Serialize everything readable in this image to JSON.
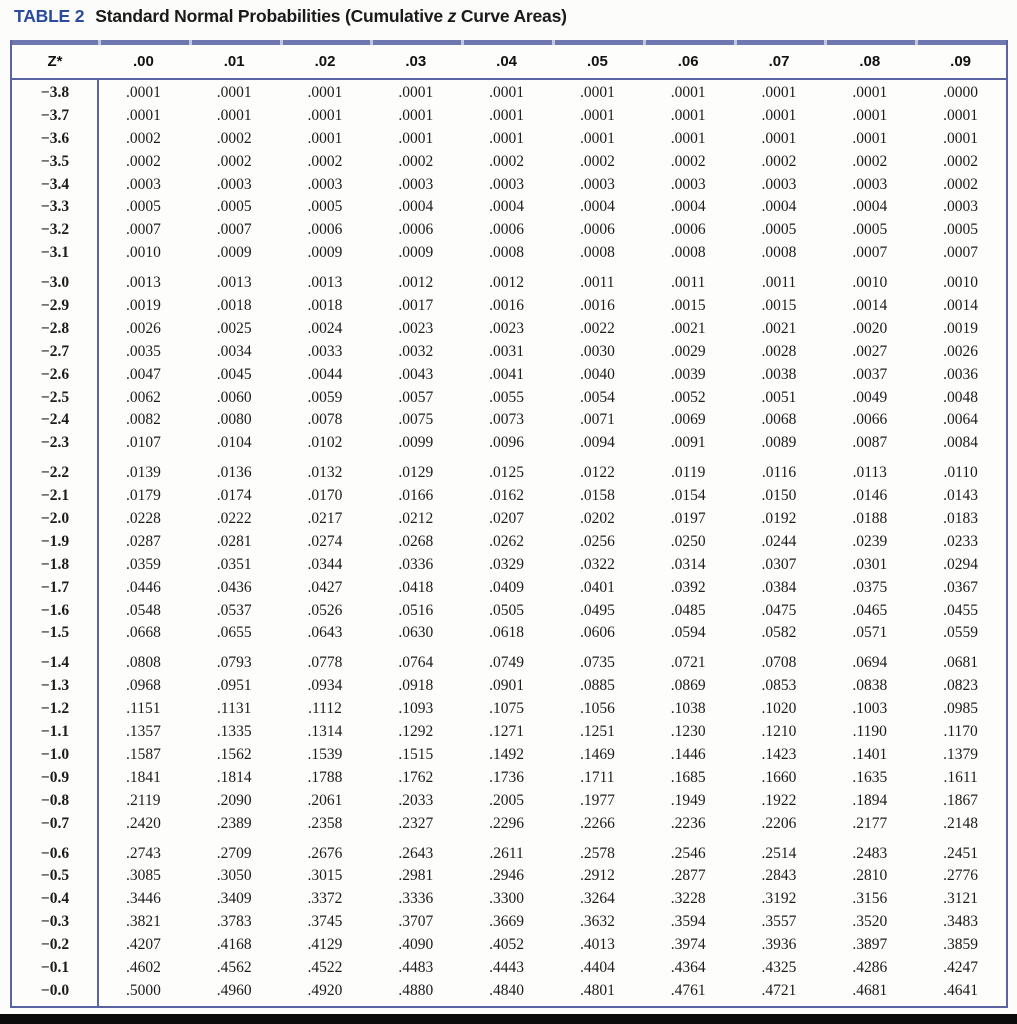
{
  "title": {
    "tag": "TABLE 2",
    "segments": [
      {
        "text": "Standard Normal Probabilities (Cumulative "
      },
      {
        "text": "z",
        "italic": true
      },
      {
        "text": " Curve Areas)"
      }
    ]
  },
  "colors": {
    "title_tag_blue": "#2b4c9e",
    "table_border_blue": "#5a64a3",
    "top_band_blue": "#6f77b0",
    "top_band_notch": "#c3c7dd",
    "text": "#1c1c1c",
    "bottom_edge_band": "#0b0b0b"
  },
  "table": {
    "columns": [
      "Z*",
      ".00",
      ".01",
      ".02",
      ".03",
      ".04",
      ".05",
      ".06",
      ".07",
      ".08",
      ".09"
    ],
    "row_groups": [
      {
        "rows": [
          [
            "−3.8",
            ".0001",
            ".0001",
            ".0001",
            ".0001",
            ".0001",
            ".0001",
            ".0001",
            ".0001",
            ".0001",
            ".0000"
          ],
          [
            "−3.7",
            ".0001",
            ".0001",
            ".0001",
            ".0001",
            ".0001",
            ".0001",
            ".0001",
            ".0001",
            ".0001",
            ".0001"
          ],
          [
            "−3.6",
            ".0002",
            ".0002",
            ".0001",
            ".0001",
            ".0001",
            ".0001",
            ".0001",
            ".0001",
            ".0001",
            ".0001"
          ],
          [
            "−3.5",
            ".0002",
            ".0002",
            ".0002",
            ".0002",
            ".0002",
            ".0002",
            ".0002",
            ".0002",
            ".0002",
            ".0002"
          ],
          [
            "−3.4",
            ".0003",
            ".0003",
            ".0003",
            ".0003",
            ".0003",
            ".0003",
            ".0003",
            ".0003",
            ".0003",
            ".0002"
          ],
          [
            "−3.3",
            ".0005",
            ".0005",
            ".0005",
            ".0004",
            ".0004",
            ".0004",
            ".0004",
            ".0004",
            ".0004",
            ".0003"
          ],
          [
            "−3.2",
            ".0007",
            ".0007",
            ".0006",
            ".0006",
            ".0006",
            ".0006",
            ".0006",
            ".0005",
            ".0005",
            ".0005"
          ],
          [
            "−3.1",
            ".0010",
            ".0009",
            ".0009",
            ".0009",
            ".0008",
            ".0008",
            ".0008",
            ".0008",
            ".0007",
            ".0007"
          ]
        ]
      },
      {
        "rows": [
          [
            "−3.0",
            ".0013",
            ".0013",
            ".0013",
            ".0012",
            ".0012",
            ".0011",
            ".0011",
            ".0011",
            ".0010",
            ".0010"
          ],
          [
            "−2.9",
            ".0019",
            ".0018",
            ".0018",
            ".0017",
            ".0016",
            ".0016",
            ".0015",
            ".0015",
            ".0014",
            ".0014"
          ],
          [
            "−2.8",
            ".0026",
            ".0025",
            ".0024",
            ".0023",
            ".0023",
            ".0022",
            ".0021",
            ".0021",
            ".0020",
            ".0019"
          ],
          [
            "−2.7",
            ".0035",
            ".0034",
            ".0033",
            ".0032",
            ".0031",
            ".0030",
            ".0029",
            ".0028",
            ".0027",
            ".0026"
          ],
          [
            "−2.6",
            ".0047",
            ".0045",
            ".0044",
            ".0043",
            ".0041",
            ".0040",
            ".0039",
            ".0038",
            ".0037",
            ".0036"
          ],
          [
            "−2.5",
            ".0062",
            ".0060",
            ".0059",
            ".0057",
            ".0055",
            ".0054",
            ".0052",
            ".0051",
            ".0049",
            ".0048"
          ],
          [
            "−2.4",
            ".0082",
            ".0080",
            ".0078",
            ".0075",
            ".0073",
            ".0071",
            ".0069",
            ".0068",
            ".0066",
            ".0064"
          ],
          [
            "−2.3",
            ".0107",
            ".0104",
            ".0102",
            ".0099",
            ".0096",
            ".0094",
            ".0091",
            ".0089",
            ".0087",
            ".0084"
          ]
        ]
      },
      {
        "rows": [
          [
            "−2.2",
            ".0139",
            ".0136",
            ".0132",
            ".0129",
            ".0125",
            ".0122",
            ".0119",
            ".0116",
            ".0113",
            ".0110"
          ],
          [
            "−2.1",
            ".0179",
            ".0174",
            ".0170",
            ".0166",
            ".0162",
            ".0158",
            ".0154",
            ".0150",
            ".0146",
            ".0143"
          ],
          [
            "−2.0",
            ".0228",
            ".0222",
            ".0217",
            ".0212",
            ".0207",
            ".0202",
            ".0197",
            ".0192",
            ".0188",
            ".0183"
          ],
          [
            "−1.9",
            ".0287",
            ".0281",
            ".0274",
            ".0268",
            ".0262",
            ".0256",
            ".0250",
            ".0244",
            ".0239",
            ".0233"
          ],
          [
            "−1.8",
            ".0359",
            ".0351",
            ".0344",
            ".0336",
            ".0329",
            ".0322",
            ".0314",
            ".0307",
            ".0301",
            ".0294"
          ],
          [
            "−1.7",
            ".0446",
            ".0436",
            ".0427",
            ".0418",
            ".0409",
            ".0401",
            ".0392",
            ".0384",
            ".0375",
            ".0367"
          ],
          [
            "−1.6",
            ".0548",
            ".0537",
            ".0526",
            ".0516",
            ".0505",
            ".0495",
            ".0485",
            ".0475",
            ".0465",
            ".0455"
          ],
          [
            "−1.5",
            ".0668",
            ".0655",
            ".0643",
            ".0630",
            ".0618",
            ".0606",
            ".0594",
            ".0582",
            ".0571",
            ".0559"
          ]
        ]
      },
      {
        "rows": [
          [
            "−1.4",
            ".0808",
            ".0793",
            ".0778",
            ".0764",
            ".0749",
            ".0735",
            ".0721",
            ".0708",
            ".0694",
            ".0681"
          ],
          [
            "−1.3",
            ".0968",
            ".0951",
            ".0934",
            ".0918",
            ".0901",
            ".0885",
            ".0869",
            ".0853",
            ".0838",
            ".0823"
          ],
          [
            "−1.2",
            ".1151",
            ".1131",
            ".1112",
            ".1093",
            ".1075",
            ".1056",
            ".1038",
            ".1020",
            ".1003",
            ".0985"
          ],
          [
            "−1.1",
            ".1357",
            ".1335",
            ".1314",
            ".1292",
            ".1271",
            ".1251",
            ".1230",
            ".1210",
            ".1190",
            ".1170"
          ],
          [
            "−1.0",
            ".1587",
            ".1562",
            ".1539",
            ".1515",
            ".1492",
            ".1469",
            ".1446",
            ".1423",
            ".1401",
            ".1379"
          ],
          [
            "−0.9",
            ".1841",
            ".1814",
            ".1788",
            ".1762",
            ".1736",
            ".1711",
            ".1685",
            ".1660",
            ".1635",
            ".1611"
          ],
          [
            "−0.8",
            ".2119",
            ".2090",
            ".2061",
            ".2033",
            ".2005",
            ".1977",
            ".1949",
            ".1922",
            ".1894",
            ".1867"
          ],
          [
            "−0.7",
            ".2420",
            ".2389",
            ".2358",
            ".2327",
            ".2296",
            ".2266",
            ".2236",
            ".2206",
            ".2177",
            ".2148"
          ]
        ]
      },
      {
        "rows": [
          [
            "−0.6",
            ".2743",
            ".2709",
            ".2676",
            ".2643",
            ".2611",
            ".2578",
            ".2546",
            ".2514",
            ".2483",
            ".2451"
          ],
          [
            "−0.5",
            ".3085",
            ".3050",
            ".3015",
            ".2981",
            ".2946",
            ".2912",
            ".2877",
            ".2843",
            ".2810",
            ".2776"
          ],
          [
            "−0.4",
            ".3446",
            ".3409",
            ".3372",
            ".3336",
            ".3300",
            ".3264",
            ".3228",
            ".3192",
            ".3156",
            ".3121"
          ],
          [
            "−0.3",
            ".3821",
            ".3783",
            ".3745",
            ".3707",
            ".3669",
            ".3632",
            ".3594",
            ".3557",
            ".3520",
            ".3483"
          ],
          [
            "−0.2",
            ".4207",
            ".4168",
            ".4129",
            ".4090",
            ".4052",
            ".4013",
            ".3974",
            ".3936",
            ".3897",
            ".3859"
          ],
          [
            "−0.1",
            ".4602",
            ".4562",
            ".4522",
            ".4483",
            ".4443",
            ".4404",
            ".4364",
            ".4325",
            ".4286",
            ".4247"
          ],
          [
            "−0.0",
            ".5000",
            ".4960",
            ".4920",
            ".4880",
            ".4840",
            ".4801",
            ".4761",
            ".4721",
            ".4681",
            ".4641"
          ]
        ]
      }
    ]
  }
}
